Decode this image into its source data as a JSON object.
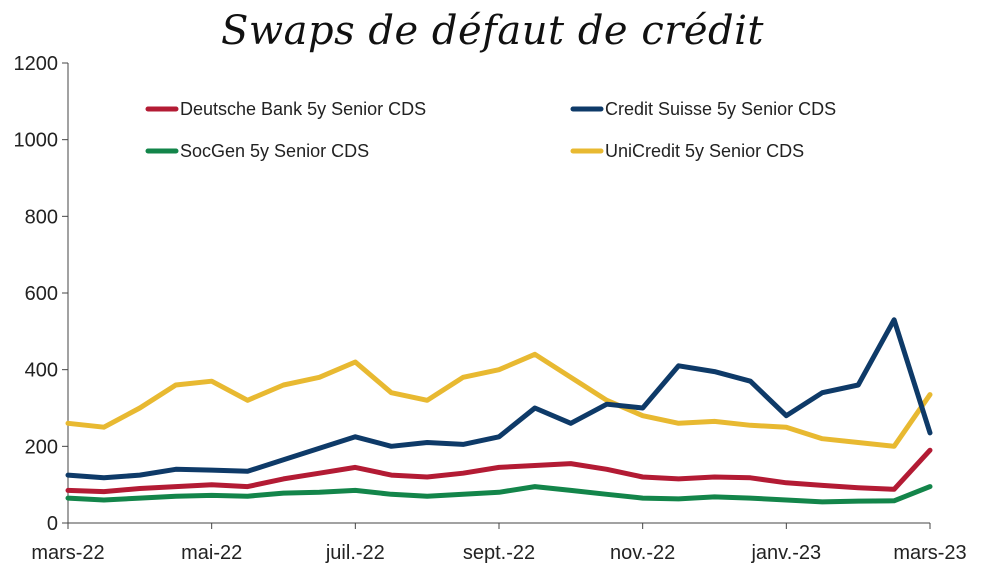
{
  "chart_data": {
    "type": "line",
    "title": "Swaps de défaut de crédit",
    "xlabel": "",
    "ylabel": "",
    "ylim": [
      0,
      1200
    ],
    "y_ticks": [
      "0",
      "200",
      "400",
      "600",
      "800",
      "1000",
      "1200"
    ],
    "x_ticks": [
      "mars-22",
      "mai-22",
      "juil.-22",
      "sept.-22",
      "nov.-22",
      "janv.-23",
      "mars-23"
    ],
    "x": [
      "2022-03-01",
      "2022-03-15",
      "2022-04-01",
      "2022-04-15",
      "2022-05-01",
      "2022-05-15",
      "2022-06-01",
      "2022-06-15",
      "2022-07-01",
      "2022-07-15",
      "2022-08-01",
      "2022-08-15",
      "2022-09-01",
      "2022-09-15",
      "2022-10-01",
      "2022-10-15",
      "2022-11-01",
      "2022-11-15",
      "2022-12-01",
      "2022-12-15",
      "2023-01-01",
      "2023-01-15",
      "2023-02-01",
      "2023-02-15",
      "2023-03-01"
    ],
    "grid": false,
    "legend_position": "top",
    "series": [
      {
        "name": "Deutsche Bank 5y Senior CDS",
        "color": "#b31b34",
        "values": [
          85,
          82,
          90,
          95,
          100,
          95,
          115,
          130,
          145,
          125,
          120,
          130,
          145,
          150,
          155,
          140,
          120,
          115,
          120,
          118,
          105,
          98,
          92,
          88,
          190
        ]
      },
      {
        "name": "Credit Suisse 5y Senior CDS",
        "color": "#0e3a68",
        "values": [
          125,
          118,
          125,
          140,
          138,
          135,
          165,
          195,
          225,
          200,
          210,
          205,
          225,
          300,
          260,
          310,
          300,
          410,
          395,
          370,
          280,
          340,
          360,
          530,
          235
        ]
      },
      {
        "name": "SocGen 5y Senior CDS",
        "color": "#13854a",
        "values": [
          65,
          60,
          65,
          70,
          72,
          70,
          78,
          80,
          85,
          75,
          70,
          75,
          80,
          95,
          85,
          75,
          65,
          63,
          68,
          65,
          60,
          55,
          57,
          58,
          95
        ]
      },
      {
        "name": "UniCredit 5y Senior CDS",
        "color": "#e8b931",
        "values": [
          260,
          250,
          300,
          360,
          370,
          320,
          360,
          380,
          420,
          340,
          320,
          380,
          400,
          440,
          380,
          320,
          280,
          260,
          265,
          255,
          250,
          220,
          210,
          200,
          335
        ]
      }
    ]
  }
}
